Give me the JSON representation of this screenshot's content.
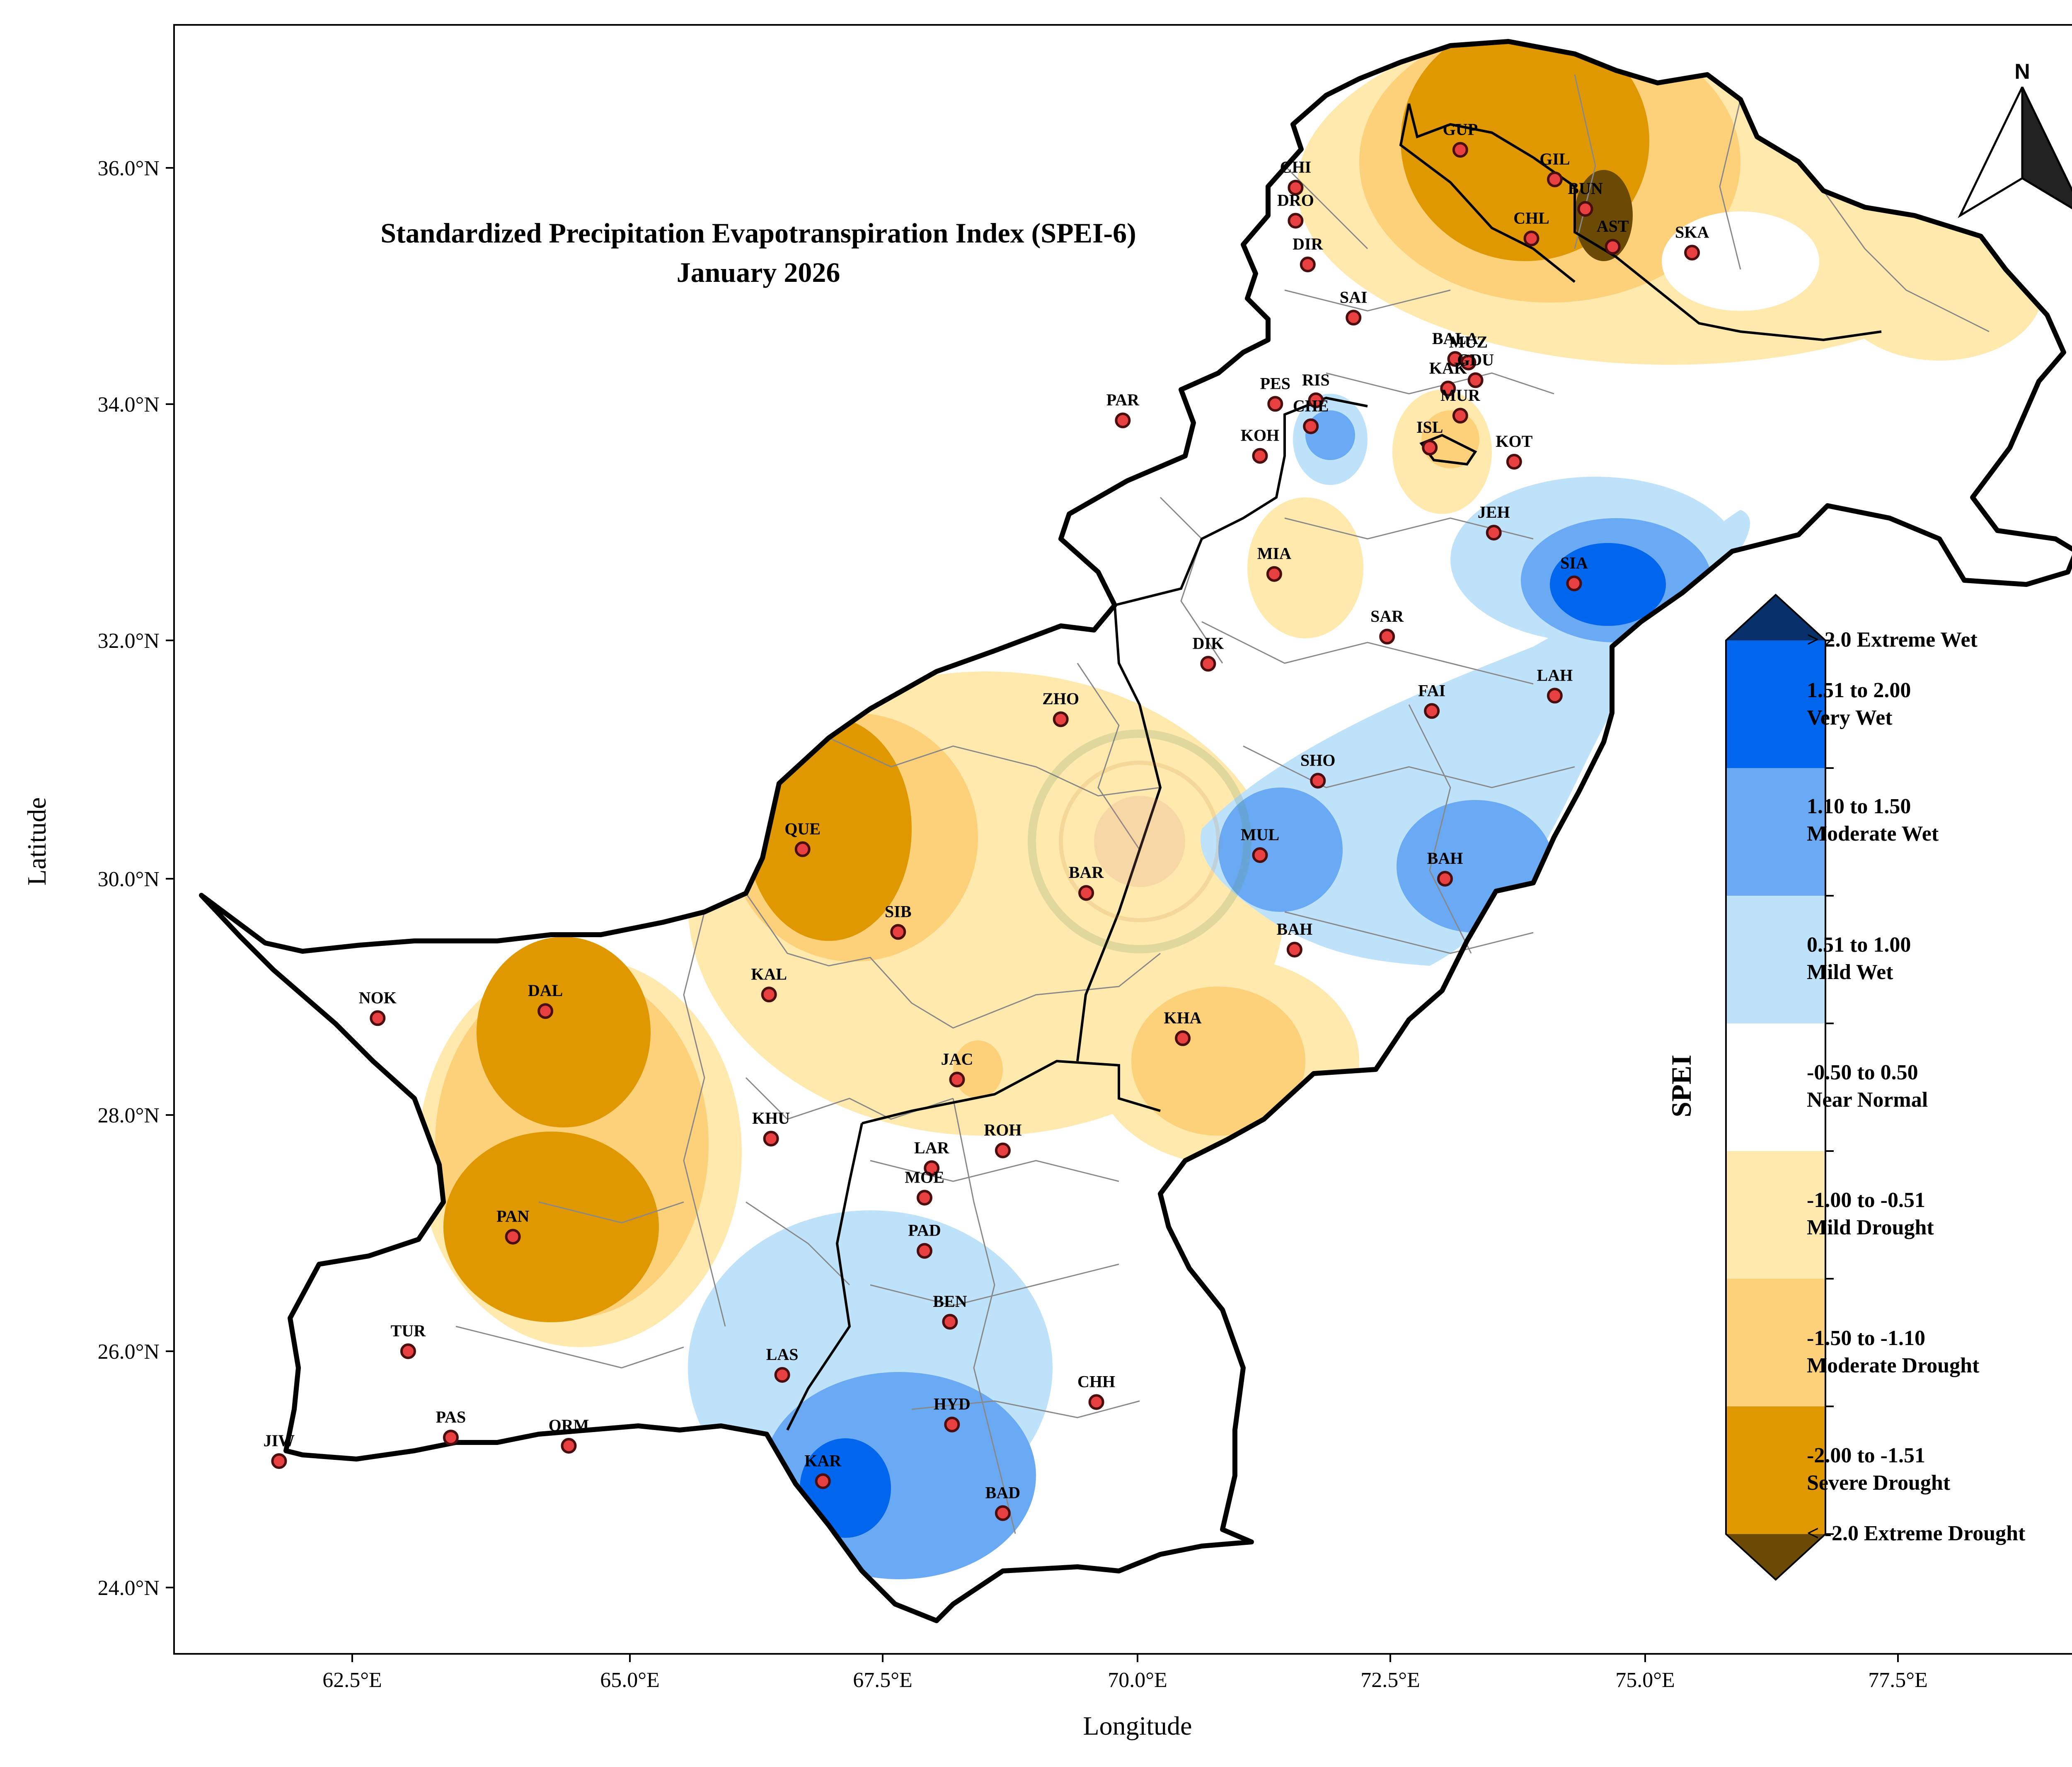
{
  "title": "Standardized Precipitation Evapotranspiration Index (SPEI-6)",
  "subtitle": "January 2026",
  "x_axis_label": "Longitude",
  "y_axis_label": "Latitude",
  "x_ticks": [
    "62.5°E",
    "65.0°E",
    "67.5°E",
    "70.0°E",
    "72.5°E",
    "75.0°E",
    "77.5°E"
  ],
  "y_ticks": [
    "24.0°N",
    "26.0°N",
    "28.0°N",
    "30.0°N",
    "32.0°N",
    "34.0°N",
    "36.0°N"
  ],
  "north_label": "N",
  "legend": {
    "title": "SPEI",
    "top_label": "> 2.0 Extreme Wet",
    "bottom_label": "< -2.0 Extreme Drought",
    "classes": [
      {
        "line1": "1.51 to 2.00",
        "line2": "Very Wet",
        "color": "#0066ee"
      },
      {
        "line1": "1.10 to 1.50",
        "line2": "Moderate Wet",
        "color": "#6aaaf5"
      },
      {
        "line1": "0.51 to 1.00",
        "line2": "Mild Wet",
        "color": "#bfe2fb"
      },
      {
        "line1": "-0.50 to 0.50",
        "line2": "Near Normal",
        "color": "#ffffff"
      },
      {
        "line1": "-1.00 to -0.51",
        "line2": "Mild Drought",
        "color": "#ffe9ad"
      },
      {
        "line1": "-1.50 to -1.10",
        "line2": "Moderate Drought",
        "color": "#fdd07a"
      },
      {
        "line1": "-2.00 to -1.51",
        "line2": "Severe Drought",
        "color": "#e09800"
      }
    ],
    "extreme_wet_color": "#08306b",
    "extreme_drought_color": "#6b4a06"
  },
  "stations": [
    {
      "code": "GUP",
      "lon": 73.4,
      "lat": 36.17
    },
    {
      "code": "GIL",
      "lon": 74.33,
      "lat": 35.92
    },
    {
      "code": "BUN",
      "lon": 74.63,
      "lat": 35.67
    },
    {
      "code": "CHI",
      "lon": 71.78,
      "lat": 35.85
    },
    {
      "code": "DRO",
      "lon": 71.78,
      "lat": 35.57
    },
    {
      "code": "CHL",
      "lon": 74.1,
      "lat": 35.42
    },
    {
      "code": "AST",
      "lon": 74.9,
      "lat": 35.35
    },
    {
      "code": "SKA",
      "lon": 75.68,
      "lat": 35.3
    },
    {
      "code": "DIR",
      "lon": 71.9,
      "lat": 35.2
    },
    {
      "code": "SAI",
      "lon": 72.35,
      "lat": 34.75
    },
    {
      "code": "BALA",
      "lon": 73.35,
      "lat": 34.4
    },
    {
      "code": "MUZ",
      "lon": 73.48,
      "lat": 34.37
    },
    {
      "code": "KAK",
      "lon": 73.28,
      "lat": 34.15
    },
    {
      "code": "GDU",
      "lon": 73.55,
      "lat": 34.22
    },
    {
      "code": "PES",
      "lon": 71.58,
      "lat": 34.02
    },
    {
      "code": "RIS",
      "lon": 71.98,
      "lat": 34.05
    },
    {
      "code": "CHE",
      "lon": 71.93,
      "lat": 33.83
    },
    {
      "code": "MUR",
      "lon": 73.4,
      "lat": 33.92
    },
    {
      "code": "PAR",
      "lon": 70.08,
      "lat": 33.88
    },
    {
      "code": "KOH",
      "lon": 71.43,
      "lat": 33.58
    },
    {
      "code": "ISL",
      "lon": 73.1,
      "lat": 33.65
    },
    {
      "code": "KOT",
      "lon": 73.93,
      "lat": 33.53
    },
    {
      "code": "JEH",
      "lon": 73.73,
      "lat": 32.93
    },
    {
      "code": "MIA",
      "lon": 71.57,
      "lat": 32.58
    },
    {
      "code": "SIA",
      "lon": 74.52,
      "lat": 32.5
    },
    {
      "code": "SAR",
      "lon": 72.68,
      "lat": 32.05
    },
    {
      "code": "DIK",
      "lon": 70.92,
      "lat": 31.82
    },
    {
      "code": "LAH",
      "lon": 74.33,
      "lat": 31.55
    },
    {
      "code": "FAI",
      "lon": 73.12,
      "lat": 31.42
    },
    {
      "code": "ZHO",
      "lon": 69.47,
      "lat": 31.35
    },
    {
      "code": "SHO",
      "lon": 72.0,
      "lat": 30.83
    },
    {
      "code": "QUE",
      "lon": 66.93,
      "lat": 30.25
    },
    {
      "code": "MUL",
      "lon": 71.43,
      "lat": 30.2
    },
    {
      "code": "BAH",
      "lon": 73.25,
      "lat": 30.0
    },
    {
      "code": "BAR",
      "lon": 69.72,
      "lat": 29.88
    },
    {
      "code": "SIB",
      "lon": 67.87,
      "lat": 29.55
    },
    {
      "code": "BAH",
      "lon": 71.77,
      "lat": 29.4
    },
    {
      "code": "KAL",
      "lon": 66.6,
      "lat": 29.02
    },
    {
      "code": "DAL",
      "lon": 64.4,
      "lat": 28.88
    },
    {
      "code": "NOK",
      "lon": 62.75,
      "lat": 28.82
    },
    {
      "code": "KHA",
      "lon": 70.67,
      "lat": 28.65
    },
    {
      "code": "JAC",
      "lon": 68.45,
      "lat": 28.3
    },
    {
      "code": "KHU",
      "lon": 66.62,
      "lat": 27.8
    },
    {
      "code": "ROH",
      "lon": 68.9,
      "lat": 27.7
    },
    {
      "code": "LAR",
      "lon": 68.2,
      "lat": 27.55
    },
    {
      "code": "MOE",
      "lon": 68.13,
      "lat": 27.3
    },
    {
      "code": "PAN",
      "lon": 64.08,
      "lat": 26.97
    },
    {
      "code": "PAD",
      "lon": 68.13,
      "lat": 26.85
    },
    {
      "code": "BEN",
      "lon": 68.38,
      "lat": 26.25
    },
    {
      "code": "TUR",
      "lon": 63.05,
      "lat": 26.0
    },
    {
      "code": "LAS",
      "lon": 66.73,
      "lat": 25.8
    },
    {
      "code": "CHH",
      "lon": 69.82,
      "lat": 25.57
    },
    {
      "code": "HYD",
      "lon": 68.4,
      "lat": 25.38
    },
    {
      "code": "PAS",
      "lon": 63.47,
      "lat": 25.27
    },
    {
      "code": "ORM",
      "lon": 64.63,
      "lat": 25.2
    },
    {
      "code": "JIW",
      "lon": 61.78,
      "lat": 25.07
    },
    {
      "code": "KAR",
      "lon": 67.13,
      "lat": 24.9
    },
    {
      "code": "BAD",
      "lon": 68.9,
      "lat": 24.63
    }
  ]
}
